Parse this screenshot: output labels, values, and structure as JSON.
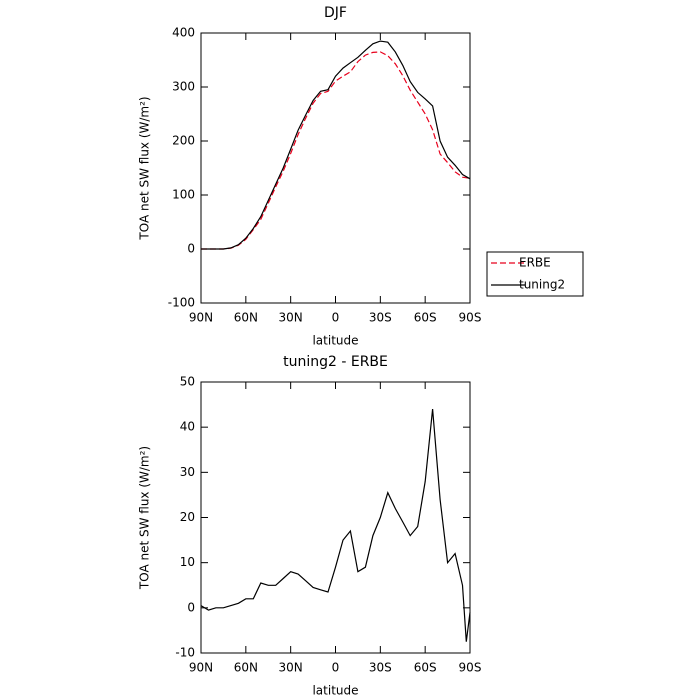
{
  "chart_data": [
    {
      "type": "line",
      "title": "DJF",
      "xlabel": "latitude",
      "ylabel": "TOA net SW flux (W/m²)",
      "x": [
        90,
        85,
        80,
        75,
        70,
        65,
        60,
        55,
        50,
        45,
        40,
        35,
        30,
        25,
        20,
        15,
        10,
        5,
        0,
        -5,
        -10,
        -15,
        -20,
        -25,
        -30,
        -35,
        -40,
        -45,
        -50,
        -55,
        -60,
        -65,
        -70,
        -75,
        -80,
        -85,
        -90
      ],
      "series": [
        {
          "name": "ERBE",
          "color": "#e8001c",
          "line_style": "dashed",
          "values": [
            0,
            0,
            0,
            0,
            1.5,
            7,
            18,
            36,
            55,
            85,
            115,
            144,
            177,
            212,
            242,
            270,
            288,
            292,
            311,
            320,
            328,
            347,
            359,
            364,
            365,
            358,
            343,
            321,
            294,
            272,
            250,
            221,
            176,
            160,
            143,
            133,
            131
          ]
        },
        {
          "name": "tuning2",
          "color": "#000000",
          "line_style": "solid",
          "values": [
            0,
            0,
            0,
            0,
            2,
            8,
            20,
            38,
            60,
            90,
            120,
            150,
            185,
            220,
            248,
            275,
            292,
            295,
            320,
            335,
            345,
            355,
            368,
            380,
            385,
            383,
            365,
            340,
            310,
            290,
            278,
            265,
            200,
            170,
            155,
            138,
            130
          ]
        }
      ],
      "xlim": [
        90,
        -90
      ],
      "xticks": [
        {
          "value": 90,
          "label": "90N"
        },
        {
          "value": 60,
          "label": "60N"
        },
        {
          "value": 30,
          "label": "30N"
        },
        0,
        {
          "value": -30,
          "label": "30S"
        },
        {
          "value": -60,
          "label": "60S"
        },
        {
          "value": -90,
          "label": "90S"
        }
      ],
      "ylim": [
        -100,
        400
      ],
      "yticks": [
        -100,
        0,
        100,
        200,
        300,
        400
      ],
      "legend": "right"
    },
    {
      "type": "line",
      "title": "tuning2 - ERBE",
      "xlabel": "latitude",
      "ylabel": "TOA net SW flux (W/m²)",
      "x": [
        90,
        85,
        80,
        75,
        70,
        65,
        60,
        55,
        50,
        45,
        40,
        35,
        30,
        25,
        20,
        15,
        10,
        5,
        0,
        -5,
        -10,
        -15,
        -20,
        -25,
        -30,
        -35,
        -40,
        -45,
        -50,
        -55,
        -60,
        -65,
        -70,
        -75,
        -80,
        -85,
        -87.5,
        -90
      ],
      "values": [
        0.5,
        -0.5,
        0,
        0,
        0.5,
        1,
        2,
        2,
        5.5,
        5,
        5,
        6.5,
        8,
        7.5,
        6,
        4.5,
        4,
        3.5,
        9,
        15,
        17,
        8,
        9,
        16,
        20,
        25.5,
        22,
        19,
        16,
        18,
        28,
        44,
        24,
        10,
        12,
        5,
        -7.5,
        -1
      ],
      "color": "#000000",
      "xlim": [
        90,
        -90
      ],
      "xticks": [
        {
          "value": 90,
          "label": "90N"
        },
        {
          "value": 60,
          "label": "60N"
        },
        {
          "value": 30,
          "label": "30N"
        },
        0,
        {
          "value": -30,
          "label": "30S"
        },
        {
          "value": -60,
          "label": "60S"
        },
        {
          "value": -90,
          "label": "90S"
        }
      ],
      "ylim": [
        -10,
        50
      ],
      "yticks": [
        -10,
        0,
        10,
        20,
        30,
        40,
        50
      ]
    }
  ]
}
